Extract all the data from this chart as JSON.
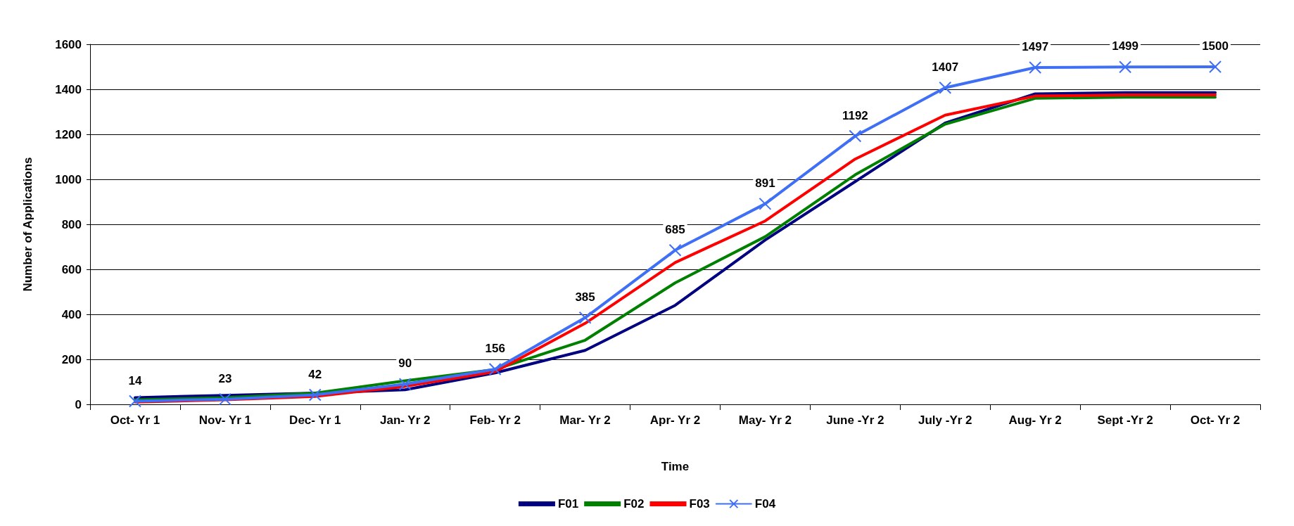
{
  "chart_data": {
    "type": "line",
    "xlabel": "Time",
    "ylabel": "Number of Applications",
    "categories": [
      "Oct- Yr 1",
      "Nov- Yr 1",
      "Dec- Yr 1",
      "Jan- Yr 2",
      "Feb- Yr 2",
      "Mar- Yr 2",
      "Apr- Yr 2",
      "May- Yr 2",
      "June -Yr 2",
      "July -Yr 2",
      "Aug- Yr 2",
      "Sept -Yr 2",
      "Oct- Yr 2"
    ],
    "series": [
      {
        "name": "F01",
        "color": "#000080",
        "marker": "none",
        "values": [
          30,
          40,
          50,
          65,
          140,
          240,
          440,
          730,
          990,
          1250,
          1380,
          1385,
          1385
        ]
      },
      {
        "name": "F02",
        "color": "#008000",
        "marker": "none",
        "values": [
          20,
          30,
          50,
          105,
          155,
          285,
          540,
          745,
          1020,
          1245,
          1360,
          1365,
          1365
        ]
      },
      {
        "name": "F03",
        "color": "#ff0000",
        "marker": "none",
        "values": [
          10,
          20,
          35,
          80,
          145,
          360,
          630,
          815,
          1090,
          1285,
          1370,
          1375,
          1375
        ]
      },
      {
        "name": "F04",
        "color": "#3f6ff5",
        "marker": "cross",
        "values": [
          14,
          23,
          42,
          90,
          156,
          385,
          685,
          891,
          1192,
          1407,
          1497,
          1499,
          1500
        ],
        "value_labels": [
          "14",
          "23",
          "42",
          "90",
          "156",
          "385",
          "685",
          "891",
          "1192",
          "1407",
          "1497",
          "1499",
          "1500"
        ]
      }
    ],
    "ylim": [
      0,
      1600
    ],
    "yticks": [
      0,
      200,
      400,
      600,
      800,
      1000,
      1200,
      1400,
      1600
    ],
    "grid": "y",
    "legend": "bottom",
    "line_style": "solid"
  }
}
